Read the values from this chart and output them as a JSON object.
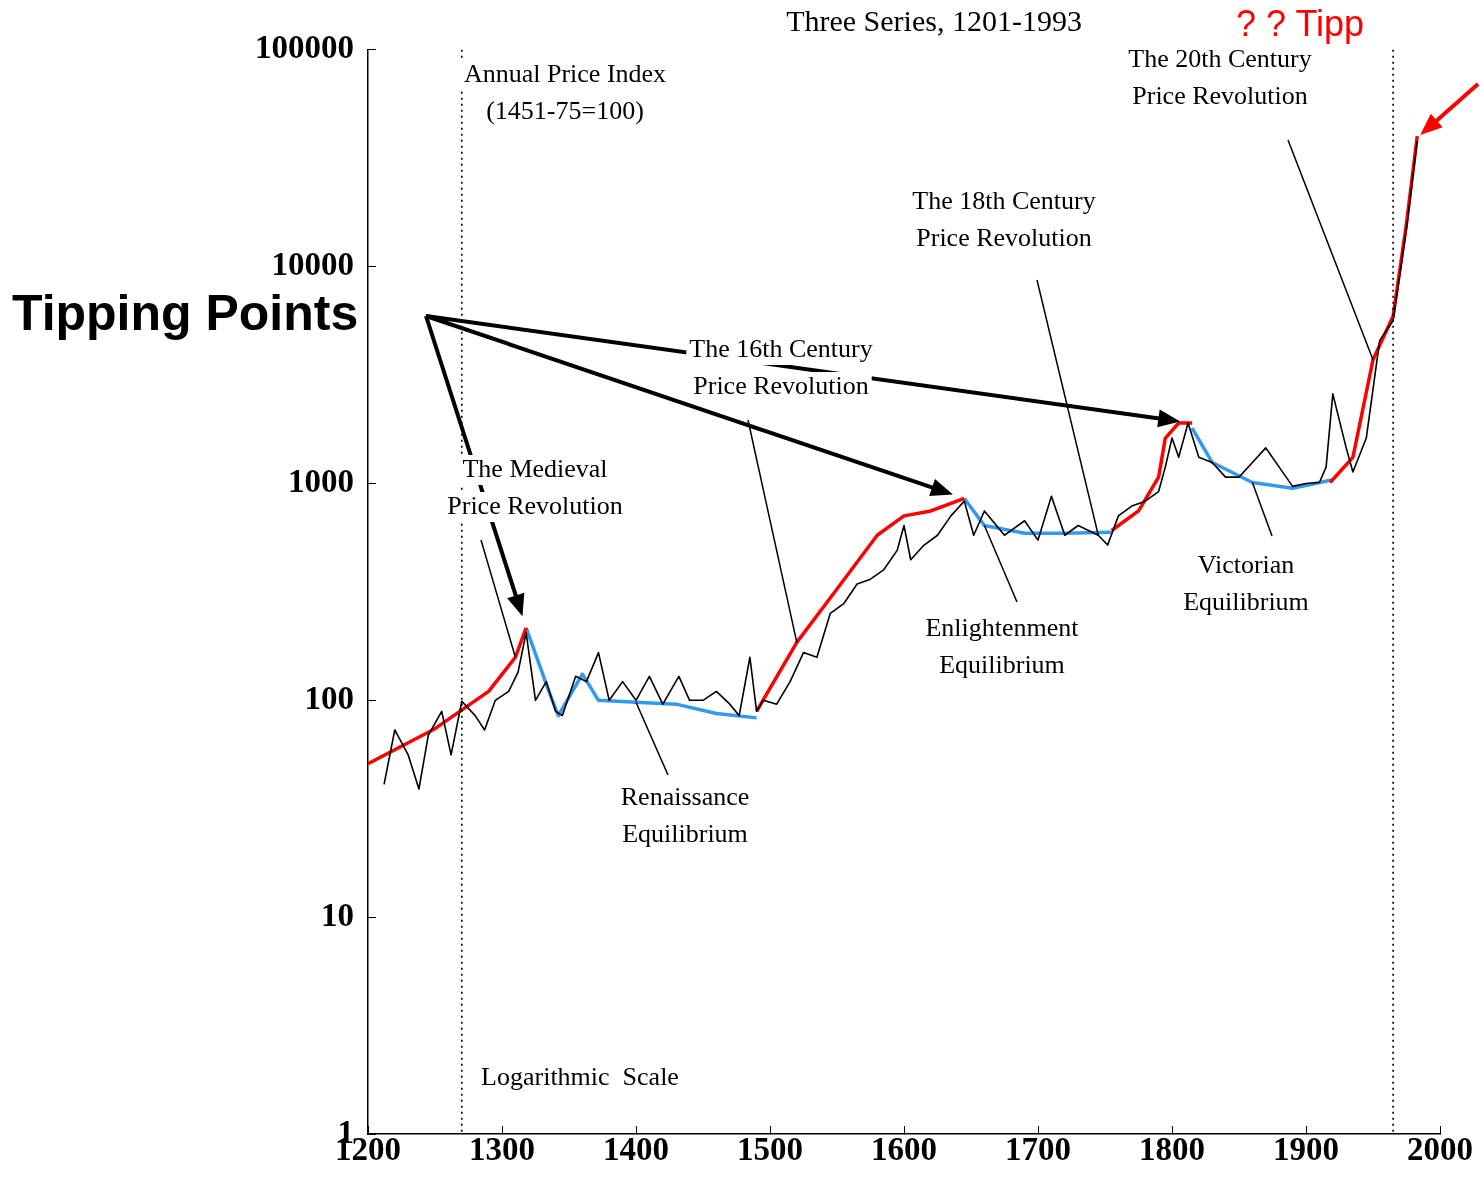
{
  "chart_data": {
    "type": "line",
    "title": "Three Series, 1201-1993",
    "annotations": [
      "Annual Price Index\n(1451-75=100)",
      "Logarithmic  Scale",
      {
        "text": "The Medieval\nPrice Revolution",
        "x": 1310,
        "y": 158
      },
      {
        "text": "Renaissance\nEquilibrium",
        "x": 1400,
        "y": 98
      },
      {
        "text": "The 16th Century\nPrice Revolution",
        "x": 1520,
        "y": 185
      },
      {
        "text": "The 18th Century\nPrice Revolution",
        "x": 1745,
        "y": 577
      },
      {
        "text": "Enlightenment\nEquilibrium",
        "x": 1660,
        "y": 640
      },
      {
        "text": "The 20th Century\nPrice Revolution",
        "x": 1950,
        "y": 3720
      },
      {
        "text": "Victorian\nEquilibrium",
        "x": 1860,
        "y": 1010
      },
      "Tipping Points",
      {
        "text": "? ? Tipp",
        "x": 1983,
        "y": 40000
      }
    ],
    "series": [
      {
        "color": "#000000",
        "x": [
          1212,
          1220,
          1230,
          1238,
          1245,
          1255,
          1262,
          1270,
          1280,
          1287,
          1295,
          1305,
          1312,
          1318,
          1325,
          1333,
          1340,
          1345,
          1355,
          1363,
          1372,
          1380,
          1390,
          1400,
          1410,
          1420,
          1432,
          1440,
          1450,
          1460,
          1470,
          1477,
          1485,
          1490,
          1495,
          1505,
          1515,
          1525,
          1535,
          1545,
          1555,
          1565,
          1575,
          1585,
          1595,
          1600,
          1605,
          1615,
          1625,
          1635,
          1645,
          1652,
          1660,
          1675,
          1690,
          1700,
          1710,
          1720,
          1730,
          1745,
          1752,
          1760,
          1770,
          1780,
          1790,
          1795,
          1800,
          1805,
          1812,
          1820,
          1830,
          1840,
          1850,
          1860,
          1870,
          1880,
          1890,
          1900,
          1910,
          1915,
          1920,
          1930,
          1935,
          1945,
          1955,
          1965,
          1975,
          1983
        ],
        "values": [
          41,
          73,
          56,
          39,
          69,
          89,
          56,
          99,
          85,
          73,
          100,
          110,
          135,
          205,
          100,
          122,
          89,
          85,
          129,
          122,
          166,
          100,
          122,
          100,
          129,
          96,
          129,
          100,
          100,
          110,
          96,
          85,
          158,
          89,
          100,
          96,
          122,
          166,
          158,
          252,
          279,
          344,
          362,
          401,
          493,
          640,
          445,
          520,
          577,
          709,
          829,
          577,
          747,
          577,
          673,
          548,
          873,
          577,
          640,
          577,
          520,
          709,
          787,
          829,
          918,
          1190,
          1620,
          1320,
          1900,
          1320,
          1250,
          1070,
          1070,
          1250,
          1460,
          1190,
          970,
          1000,
          1010,
          1190,
          2590,
          1460,
          1130,
          1620,
          4570,
          5630,
          15000,
          38000
        ]
      },
      {
        "color": "#ff0000",
        "x": [
          1200,
          1250,
          1290,
          1310,
          1318,
          1400,
          1490,
          1520,
          1550,
          1580,
          1600,
          1620,
          1645,
          1700,
          1755,
          1775,
          1790,
          1795,
          1805,
          1815,
          1870,
          1918,
          1935,
          1950,
          1965,
          1975,
          1983
        ],
        "values": [
          51,
          74,
          110,
          158,
          216,
          null,
          89,
          185,
          326,
          577,
          709,
          747,
          853,
          null,
          607,
          747,
          1070,
          1620,
          1900,
          1900,
          null,
          1010,
          1320,
          3720,
          5900,
          15800,
          40000
        ]
      },
      {
        "color": "#3399ee",
        "x": [
          1318,
          1335,
          1342,
          1360,
          1372,
          1400,
          1430,
          1460,
          1490,
          1570,
          1645,
          1660,
          1690,
          1720,
          1755,
          1785,
          1815,
          1830,
          1860,
          1890,
          1920
        ],
        "values": [
          216,
          110,
          85,
          132,
          100,
          98,
          96,
          87,
          83,
          null,
          853,
          640,
          590,
          590,
          595,
          null,
          1800,
          1250,
          1010,
          950,
          1040
        ]
      }
    ],
    "log": true,
    "xlim": [
      1200,
      2000
    ],
    "xticks": [
      1200,
      1300,
      1400,
      1500,
      1600,
      1700,
      1800,
      1900,
      2000
    ],
    "ylim": [
      1,
      100000
    ],
    "yticks": [
      1,
      10,
      100,
      1000,
      10000,
      100000
    ],
    "ref_lines": [
      {
        "axis": "x",
        "value": 1270,
        "line_style": "dotted",
        "color": "#000000"
      },
      {
        "axis": "x",
        "value": 1965,
        "line_style": "dotted",
        "color": "#000000"
      }
    ],
    "grid": false,
    "legend": false,
    "marker": "none"
  }
}
